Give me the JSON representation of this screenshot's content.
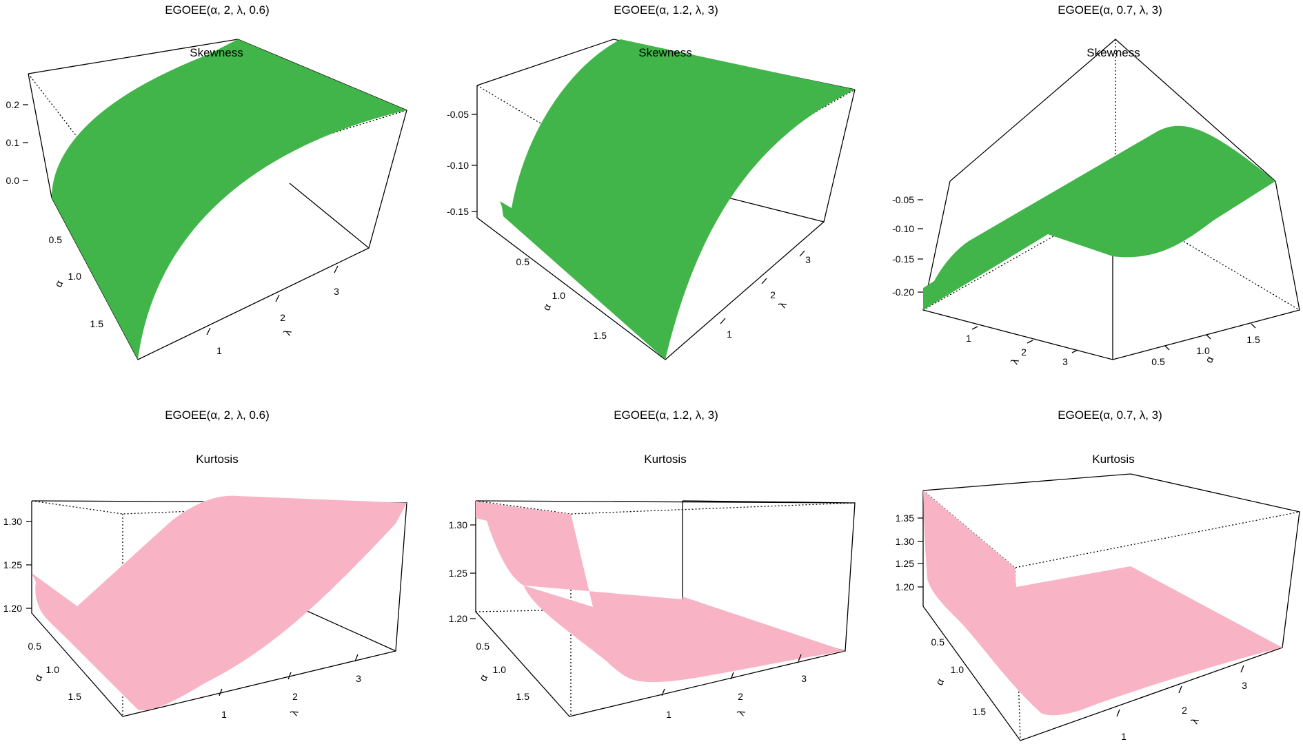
{
  "colors": {
    "skewness_surface": "#41b549",
    "kurtosis_surface": "#f8b4c5",
    "box": "#000000"
  },
  "chart_data": [
    {
      "type": "surface3d",
      "title": "EGOEE(α, 2, λ, 0.6)",
      "subtitle": "Skewness",
      "xlabel": "α",
      "ylabel": "λ",
      "z_ticks": [
        "0.2",
        "0.1",
        "0.0"
      ],
      "alpha_ticks": [
        "0.5",
        "1.0",
        "1.5"
      ],
      "lambda_ticks": [
        "1",
        "2",
        "3"
      ],
      "color": "#41b549"
    },
    {
      "type": "surface3d",
      "title": "EGOEE(α, 1.2, λ, 3)",
      "subtitle": "Skewness",
      "xlabel": "α",
      "ylabel": "λ",
      "z_ticks": [
        "-0.05",
        "-0.10",
        "-0.15"
      ],
      "alpha_ticks": [
        "0.5",
        "1.0",
        "1.5"
      ],
      "lambda_ticks": [
        "1",
        "2",
        "3"
      ],
      "color": "#41b549"
    },
    {
      "type": "surface3d",
      "title": "EGOEE(α, 0.7, λ, 3)",
      "subtitle": "Skewness",
      "xlabel": "α",
      "ylabel": "λ",
      "z_ticks": [
        "-0.05",
        "-0.10",
        "-0.15",
        "-0.20"
      ],
      "alpha_ticks": [
        "0.5",
        "1.0",
        "1.5"
      ],
      "lambda_ticks": [
        "1",
        "2",
        "3"
      ],
      "color": "#41b549"
    },
    {
      "type": "surface3d",
      "title": "EGOEE(α, 2, λ, 0.6)",
      "subtitle": "Kurtosis",
      "xlabel": "α",
      "ylabel": "λ",
      "z_ticks": [
        "1.30",
        "1.25",
        "1.20"
      ],
      "alpha_ticks": [
        "0.5",
        "1.0",
        "1.5"
      ],
      "lambda_ticks": [
        "1",
        "2",
        "3"
      ],
      "color": "#f8b4c5"
    },
    {
      "type": "surface3d",
      "title": "EGOEE(α, 1.2, λ, 3)",
      "subtitle": "Kurtosis",
      "xlabel": "α",
      "ylabel": "λ",
      "z_ticks": [
        "1.30",
        "1.25",
        "1.20"
      ],
      "alpha_ticks": [
        "0.5",
        "1.0",
        "1.5"
      ],
      "lambda_ticks": [
        "1",
        "2",
        "3"
      ],
      "color": "#f8b4c5"
    },
    {
      "type": "surface3d",
      "title": "EGOEE(α, 0.7, λ, 3)",
      "subtitle": "Kurtosis",
      "xlabel": "α",
      "ylabel": "λ",
      "z_ticks": [
        "1.35",
        "1.30",
        "1.25",
        "1.20"
      ],
      "alpha_ticks": [
        "0.5",
        "1.0",
        "1.5"
      ],
      "lambda_ticks": [
        "1",
        "2",
        "3"
      ],
      "color": "#f8b4c5"
    }
  ]
}
